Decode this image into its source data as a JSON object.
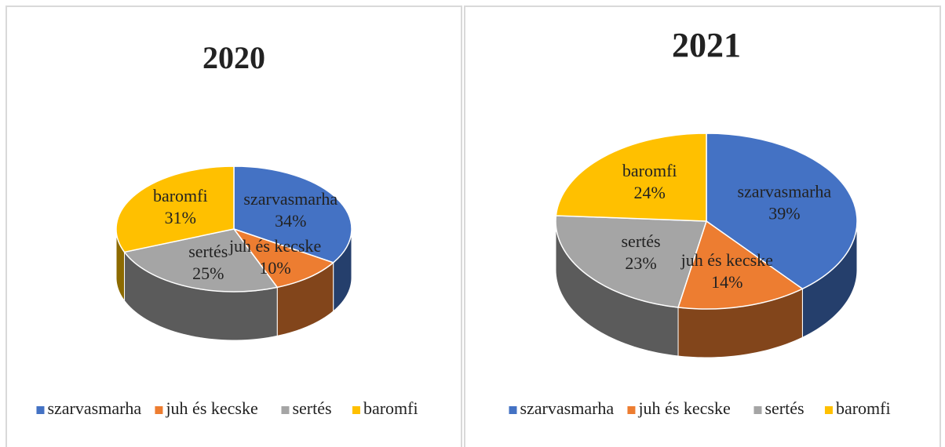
{
  "chart_data": [
    {
      "type": "pie3d",
      "title": "2020",
      "categories": [
        "szarvasmarha",
        "juh és kecske",
        "sertés",
        "baromfi"
      ],
      "values": [
        34,
        10,
        25,
        31
      ],
      "value_labels": [
        "34%",
        "10%",
        "25%",
        "31%"
      ],
      "colors": [
        "#4472c4",
        "#ed7d31",
        "#a5a5a5",
        "#ffc000"
      ],
      "legend": "bottom"
    },
    {
      "type": "pie3d",
      "title": "2021",
      "categories": [
        "szarvasmarha",
        "juh és kecske",
        "sertés",
        "baromfi"
      ],
      "values": [
        39,
        14,
        23,
        24
      ],
      "value_labels": [
        "39%",
        "14%",
        "23%",
        "24%"
      ],
      "colors": [
        "#4472c4",
        "#ed7d31",
        "#a5a5a5",
        "#ffc000"
      ],
      "legend": "bottom"
    }
  ]
}
